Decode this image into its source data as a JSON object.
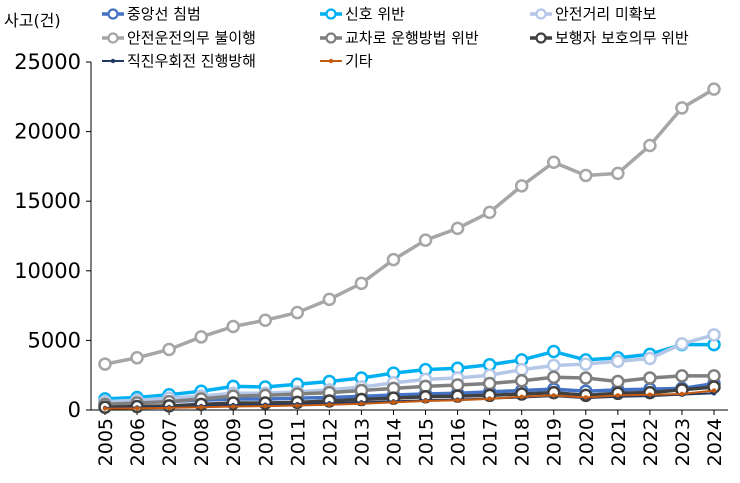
{
  "chart_data": {
    "type": "line",
    "ylabel": "사고(건)",
    "ylim": [
      0,
      25000
    ],
    "yticks": [
      0,
      5000,
      10000,
      15000,
      20000,
      25000
    ],
    "x": [
      "2005",
      "2006",
      "2007",
      "2008",
      "2009",
      "2010",
      "2011",
      "2012",
      "2013",
      "2014",
      "2015",
      "2016",
      "2017",
      "2018",
      "2019",
      "2020",
      "2021",
      "2022",
      "2023",
      "2024"
    ],
    "legend_position": "top",
    "grid": false,
    "series": [
      {
        "name": "중앙선 침범",
        "color": "#4472C4",
        "marker": "open-circle",
        "values": [
          500,
          560,
          620,
          700,
          800,
          780,
          850,
          900,
          980,
          1080,
          1150,
          1200,
          1300,
          1400,
          1500,
          1350,
          1450,
          1500,
          1550,
          1900
        ]
      },
      {
        "name": "신호 위반",
        "color": "#00B0F0",
        "marker": "open-circle",
        "values": [
          800,
          900,
          1100,
          1350,
          1700,
          1650,
          1850,
          2050,
          2300,
          2650,
          2900,
          3000,
          3250,
          3600,
          4200,
          3600,
          3750,
          4000,
          4700,
          4700
        ]
      },
      {
        "name": "안전거리 미확보",
        "color": "#B4C7E7",
        "marker": "open-circle",
        "values": [
          600,
          700,
          850,
          1000,
          1200,
          1200,
          1300,
          1450,
          1650,
          1950,
          2200,
          2300,
          2500,
          2900,
          3200,
          3300,
          3500,
          3700,
          4750,
          5400
        ]
      },
      {
        "name": "안전운전의무 불이행",
        "color": "#A6A6A6",
        "marker": "open-circle",
        "values": [
          3300,
          3750,
          4350,
          5250,
          6000,
          6450,
          7000,
          7950,
          9100,
          10800,
          12200,
          13050,
          14200,
          16100,
          17800,
          16850,
          17000,
          19000,
          21700,
          23050
        ]
      },
      {
        "name": "교차로 운행방법 위반",
        "color": "#7F7F7F",
        "marker": "open-circle",
        "values": [
          400,
          500,
          600,
          800,
          1000,
          1050,
          1150,
          1250,
          1400,
          1550,
          1700,
          1800,
          1900,
          2100,
          2350,
          2300,
          2050,
          2300,
          2450,
          2450
        ]
      },
      {
        "name": "보행자 보호의무 위반",
        "color": "#404040",
        "marker": "open-circle",
        "values": [
          200,
          250,
          300,
          400,
          500,
          500,
          550,
          650,
          750,
          850,
          950,
          1000,
          1050,
          1150,
          1250,
          1050,
          1200,
          1250,
          1450,
          1650
        ]
      },
      {
        "name": "직진우회전 진행방해",
        "color": "#203864",
        "marker": "dot",
        "values": [
          150,
          180,
          220,
          280,
          350,
          380,
          420,
          480,
          550,
          620,
          700,
          750,
          820,
          900,
          1000,
          850,
          950,
          1000,
          1100,
          1200
        ]
      },
      {
        "name": "기타",
        "color": "#C55A11",
        "marker": "dot",
        "values": [
          100,
          120,
          150,
          200,
          250,
          280,
          320,
          380,
          450,
          550,
          650,
          700,
          800,
          950,
          1050,
          900,
          1050,
          1100,
          1150,
          1400
        ]
      }
    ]
  }
}
